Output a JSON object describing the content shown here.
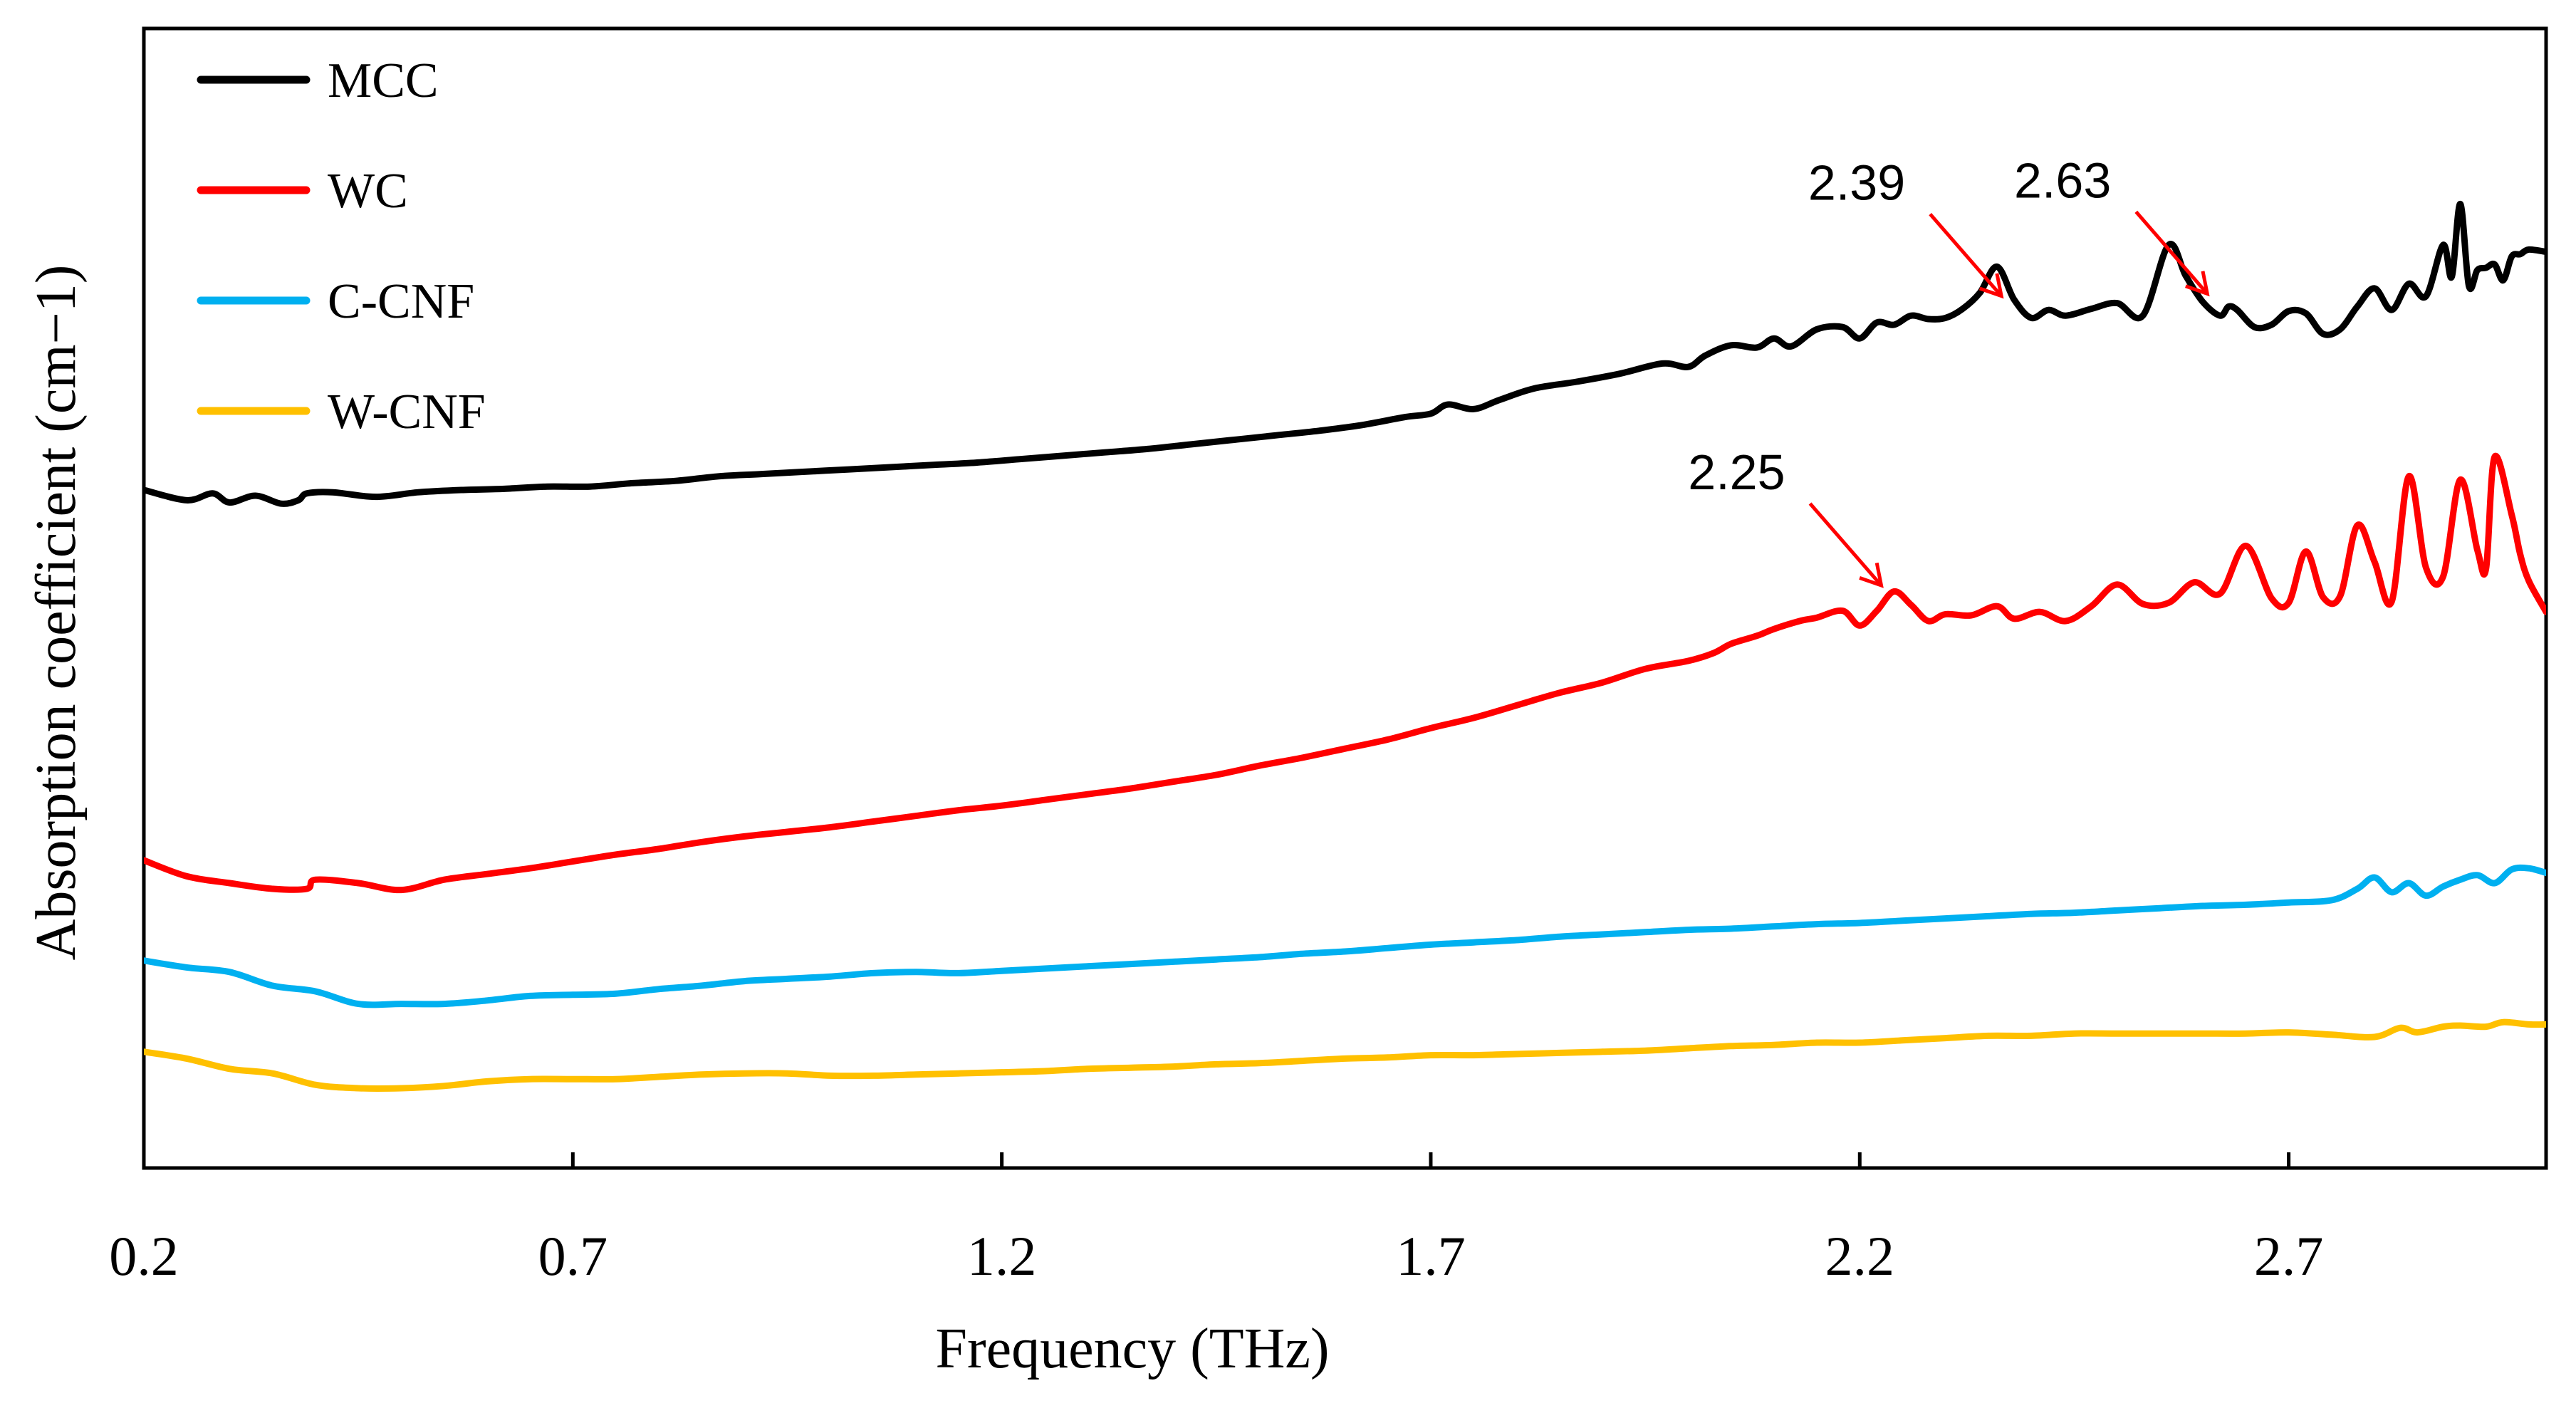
{
  "chart_data": {
    "type": "line",
    "title": "",
    "xlabel": "Frequency (THz)",
    "ylabel": "Absorption coefficient (cm−1)",
    "xlim": [
      0.2,
      3.0
    ],
    "ylim": [
      0,
      100
    ],
    "y_ticks_shown": false,
    "x_ticks": [
      0.2,
      0.7,
      1.2,
      1.7,
      2.2,
      2.7
    ],
    "x_tick_labels": [
      "0.2",
      "0.7",
      "1.2",
      "1.7",
      "2.2",
      "2.7"
    ],
    "legend_position": "top-left",
    "series": [
      {
        "name": "MCC",
        "color": "#000000",
        "x": [
          0.2,
          0.25,
          0.28,
          0.3,
          0.33,
          0.36,
          0.38,
          0.39,
          0.42,
          0.47,
          0.52,
          0.57,
          0.62,
          0.67,
          0.72,
          0.77,
          0.82,
          0.87,
          0.92,
          0.97,
          1.02,
          1.07,
          1.12,
          1.17,
          1.22,
          1.27,
          1.32,
          1.37,
          1.42,
          1.47,
          1.52,
          1.57,
          1.62,
          1.67,
          1.7,
          1.72,
          1.75,
          1.78,
          1.82,
          1.87,
          1.92,
          1.97,
          2.0,
          2.02,
          2.05,
          2.08,
          2.1,
          2.12,
          2.15,
          2.18,
          2.2,
          2.22,
          2.24,
          2.26,
          2.28,
          2.3,
          2.32,
          2.34,
          2.36,
          2.38,
          2.4,
          2.42,
          2.44,
          2.47,
          2.5,
          2.53,
          2.56,
          2.58,
          2.6,
          2.62,
          2.63,
          2.64,
          2.66,
          2.68,
          2.7,
          2.72,
          2.74,
          2.76,
          2.78,
          2.8,
          2.82,
          2.84,
          2.86,
          2.88,
          2.89,
          2.9,
          2.91,
          2.92,
          2.93,
          2.94,
          2.95,
          2.96,
          2.97,
          2.98,
          3.0
        ],
        "y": [
          59.5,
          58.6,
          59.2,
          58.4,
          59.0,
          58.3,
          58.6,
          59.2,
          59.3,
          58.9,
          59.3,
          59.5,
          59.6,
          59.8,
          59.8,
          60.1,
          60.3,
          60.7,
          60.9,
          61.1,
          61.3,
          61.5,
          61.7,
          61.9,
          62.2,
          62.5,
          62.8,
          63.1,
          63.5,
          63.9,
          64.3,
          64.7,
          65.2,
          65.9,
          66.2,
          67.0,
          66.6,
          67.4,
          68.4,
          69.0,
          69.7,
          70.6,
          70.3,
          71.3,
          72.2,
          72.0,
          72.8,
          72.1,
          73.6,
          73.8,
          72.8,
          74.2,
          74.0,
          74.8,
          74.5,
          74.6,
          75.4,
          76.8,
          79.1,
          76.2,
          74.6,
          75.3,
          74.8,
          75.4,
          75.9,
          74.8,
          81.0,
          78.3,
          76.0,
          74.8,
          75.6,
          75.3,
          73.8,
          74.0,
          75.2,
          75.0,
          73.2,
          73.6,
          75.6,
          77.2,
          75.3,
          77.6,
          76.5,
          81.0,
          78.2,
          84.6,
          77.4,
          78.8,
          79.0,
          79.3,
          77.9,
          80.0,
          80.2,
          80.6,
          80.4
        ]
      },
      {
        "name": "WC",
        "color": "#ff0000",
        "x": [
          0.2,
          0.25,
          0.3,
          0.35,
          0.39,
          0.4,
          0.45,
          0.5,
          0.55,
          0.6,
          0.65,
          0.7,
          0.75,
          0.8,
          0.85,
          0.9,
          0.95,
          1.0,
          1.05,
          1.1,
          1.15,
          1.2,
          1.25,
          1.3,
          1.35,
          1.4,
          1.45,
          1.5,
          1.55,
          1.6,
          1.65,
          1.7,
          1.75,
          1.8,
          1.85,
          1.9,
          1.95,
          2.0,
          2.03,
          2.05,
          2.08,
          2.1,
          2.13,
          2.15,
          2.18,
          2.2,
          2.22,
          2.24,
          2.26,
          2.28,
          2.3,
          2.33,
          2.36,
          2.38,
          2.41,
          2.44,
          2.47,
          2.5,
          2.53,
          2.56,
          2.59,
          2.62,
          2.65,
          2.68,
          2.7,
          2.72,
          2.74,
          2.76,
          2.78,
          2.8,
          2.82,
          2.84,
          2.86,
          2.88,
          2.9,
          2.92,
          2.93,
          2.94,
          2.96,
          2.97,
          2.98,
          3.0
        ],
        "y": [
          27.0,
          25.6,
          25.0,
          24.5,
          24.5,
          25.3,
          25.0,
          24.4,
          25.3,
          25.8,
          26.3,
          26.9,
          27.5,
          28.0,
          28.6,
          29.1,
          29.5,
          29.9,
          30.4,
          30.9,
          31.4,
          31.8,
          32.3,
          32.8,
          33.3,
          33.9,
          34.5,
          35.3,
          36.0,
          36.8,
          37.6,
          38.6,
          39.5,
          40.6,
          41.7,
          42.6,
          43.8,
          44.5,
          45.2,
          46.0,
          46.7,
          47.3,
          48.0,
          48.3,
          48.9,
          47.6,
          48.9,
          50.6,
          49.4,
          48.0,
          48.6,
          48.5,
          49.3,
          48.2,
          48.8,
          48.0,
          49.3,
          51.2,
          49.5,
          49.6,
          51.4,
          50.4,
          54.6,
          50.0,
          49.6,
          54.1,
          50.1,
          50.2,
          56.4,
          53.2,
          49.7,
          60.7,
          52.7,
          51.9,
          60.4,
          54.2,
          52.6,
          62.4,
          57.3,
          53.8,
          51.5,
          48.8
        ]
      },
      {
        "name": "C-CNF",
        "color": "#00b0f0",
        "x": [
          0.2,
          0.25,
          0.3,
          0.35,
          0.4,
          0.45,
          0.5,
          0.55,
          0.6,
          0.65,
          0.7,
          0.75,
          0.8,
          0.85,
          0.9,
          0.95,
          1.0,
          1.05,
          1.1,
          1.15,
          1.2,
          1.25,
          1.3,
          1.35,
          1.4,
          1.45,
          1.5,
          1.55,
          1.6,
          1.65,
          1.7,
          1.75,
          1.8,
          1.85,
          1.9,
          1.95,
          2.0,
          2.05,
          2.1,
          2.15,
          2.2,
          2.25,
          2.3,
          2.35,
          2.4,
          2.45,
          2.5,
          2.55,
          2.6,
          2.65,
          2.7,
          2.75,
          2.78,
          2.8,
          2.82,
          2.84,
          2.86,
          2.88,
          2.9,
          2.92,
          2.94,
          2.96,
          2.98,
          3.0
        ],
        "y": [
          18.2,
          17.6,
          17.2,
          16.0,
          15.5,
          14.4,
          14.4,
          14.4,
          14.7,
          15.1,
          15.2,
          15.3,
          15.7,
          16.0,
          16.4,
          16.6,
          16.8,
          17.1,
          17.2,
          17.1,
          17.3,
          17.5,
          17.7,
          17.9,
          18.1,
          18.3,
          18.5,
          18.8,
          19.0,
          19.3,
          19.6,
          19.8,
          20.0,
          20.3,
          20.5,
          20.7,
          20.9,
          21.0,
          21.2,
          21.4,
          21.5,
          21.7,
          21.9,
          22.1,
          22.3,
          22.4,
          22.6,
          22.8,
          23.0,
          23.1,
          23.3,
          23.5,
          24.5,
          25.5,
          24.2,
          25.0,
          23.9,
          24.7,
          25.3,
          25.7,
          25.0,
          26.2,
          26.3,
          25.9
        ]
      },
      {
        "name": "W-CNF",
        "color": "#ffc000",
        "x": [
          0.2,
          0.25,
          0.3,
          0.35,
          0.4,
          0.45,
          0.5,
          0.55,
          0.6,
          0.65,
          0.7,
          0.75,
          0.8,
          0.85,
          0.9,
          0.95,
          1.0,
          1.05,
          1.1,
          1.15,
          1.2,
          1.25,
          1.3,
          1.35,
          1.4,
          1.45,
          1.5,
          1.55,
          1.6,
          1.65,
          1.7,
          1.75,
          1.8,
          1.85,
          1.9,
          1.95,
          2.0,
          2.05,
          2.1,
          2.15,
          2.2,
          2.25,
          2.3,
          2.35,
          2.4,
          2.45,
          2.5,
          2.55,
          2.6,
          2.65,
          2.7,
          2.75,
          2.8,
          2.83,
          2.85,
          2.88,
          2.9,
          2.93,
          2.95,
          2.98,
          3.0
        ],
        "y": [
          10.2,
          9.6,
          8.7,
          8.3,
          7.3,
          7.0,
          7.0,
          7.2,
          7.6,
          7.8,
          7.8,
          7.8,
          8.0,
          8.2,
          8.3,
          8.3,
          8.1,
          8.1,
          8.2,
          8.3,
          8.4,
          8.5,
          8.7,
          8.8,
          8.9,
          9.1,
          9.2,
          9.4,
          9.6,
          9.7,
          9.9,
          9.9,
          10.0,
          10.1,
          10.2,
          10.3,
          10.5,
          10.7,
          10.8,
          11.0,
          11.0,
          11.2,
          11.4,
          11.6,
          11.6,
          11.8,
          11.8,
          11.8,
          11.8,
          11.8,
          11.9,
          11.7,
          11.5,
          12.3,
          11.9,
          12.4,
          12.5,
          12.4,
          12.8,
          12.6,
          12.6
        ]
      }
    ],
    "annotations": [
      {
        "text": "2.39",
        "series": "MCC",
        "x": 2.39
      },
      {
        "text": "2.63",
        "series": "MCC",
        "x": 2.63
      },
      {
        "text": "2.25",
        "series": "WC",
        "x": 2.25
      }
    ],
    "annotation_arrow_color": "#ff0000"
  }
}
